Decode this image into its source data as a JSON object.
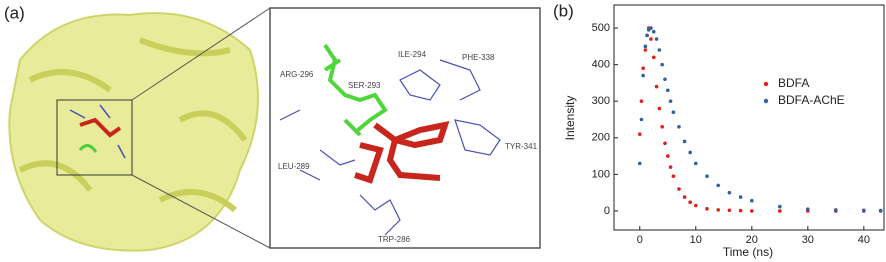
{
  "docking": {
    "panel_label": "(a)",
    "residues": [
      "ARG-296",
      "SER-293",
      "ILE-294",
      "PHE-338",
      "TYR-341",
      "LEU-289",
      "TRP-286"
    ]
  },
  "chart_data": {
    "type": "scatter",
    "panel_label": "(b)",
    "x_label": "Time (ns)",
    "y_label": "Intensity",
    "x": [
      0,
      0.3,
      0.6,
      1,
      1.3,
      1.6,
      2,
      2.5,
      3,
      3.5,
      4,
      4.5,
      5,
      5.5,
      6,
      7,
      8,
      9,
      10,
      12,
      14,
      16,
      18,
      20,
      25,
      30,
      35,
      40,
      43
    ],
    "series": [
      {
        "name": "BDFA",
        "color": "#e0201f",
        "values": [
          210,
          300,
          390,
          440,
          480,
          500,
          470,
          420,
          340,
          280,
          230,
          185,
          150,
          120,
          95,
          60,
          38,
          24,
          15,
          6,
          3,
          2,
          1,
          0,
          0,
          0,
          0,
          0,
          0
        ]
      },
      {
        "name": "BDFA-AChE",
        "color": "#2f62a0",
        "values": [
          130,
          250,
          370,
          450,
          480,
          495,
          500,
          490,
          470,
          440,
          400,
          360,
          330,
          300,
          270,
          230,
          190,
          160,
          130,
          95,
          70,
          50,
          38,
          28,
          12,
          5,
          3,
          2,
          1
        ]
      }
    ],
    "xlim": [
      -4.6,
      43.6
    ],
    "ylim": [
      -52,
      563
    ],
    "xticks": [
      0,
      10,
      20,
      30,
      40
    ],
    "yticks": [
      0,
      100,
      200,
      300,
      400,
      500
    ],
    "legend": "upper-right"
  }
}
